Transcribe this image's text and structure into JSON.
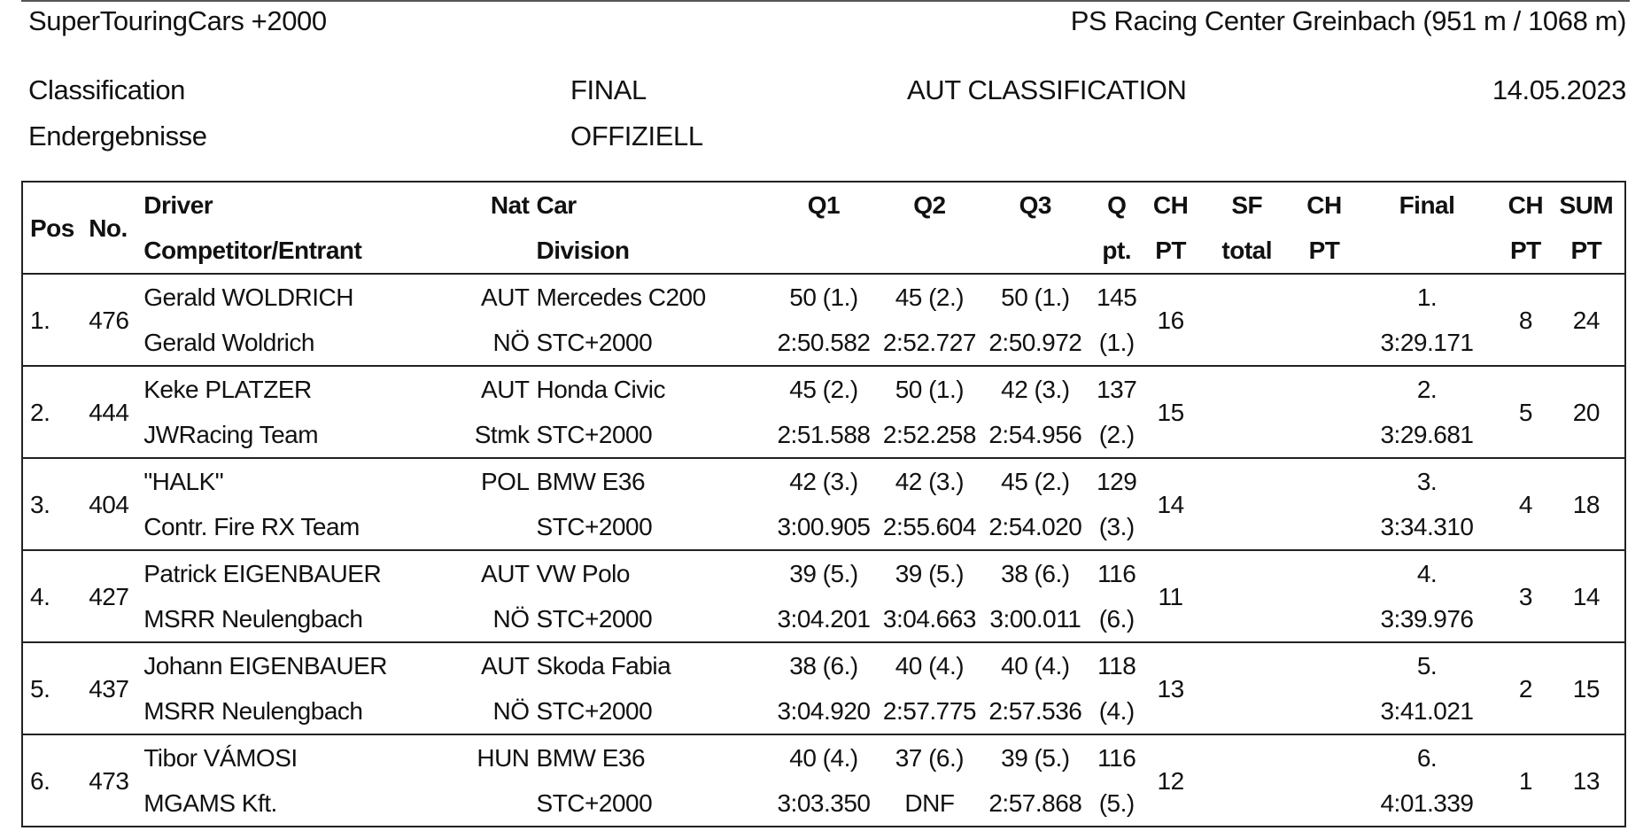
{
  "header": {
    "series": "SuperTouringCars +2000",
    "venue": "PS Racing Center Greinbach (951 m / 1068 m)",
    "classification_en": "Classification",
    "classification_de": "Endergebnisse",
    "stage": "FINAL",
    "status": "OFFIZIELL",
    "classification_type": "AUT CLASSIFICATION",
    "date": "14.05.2023"
  },
  "columns": {
    "pos": "Pos",
    "no": "No.",
    "driver": "Driver",
    "competitor": "Competitor/Entrant",
    "nat": "Nat",
    "car": "Car",
    "division": "Division",
    "q1": "Q1",
    "q2": "Q2",
    "q3": "Q3",
    "q_top": "Q",
    "q_bottom": "pt.",
    "ch1_top": "CH",
    "ch1_bottom": "PT",
    "sf_top": "SF",
    "sf_bottom": "total",
    "ch2_top": "CH",
    "ch2_bottom": "PT",
    "final": "Final",
    "ch3_top": "CH",
    "ch3_bottom": "PT",
    "sum_top": "SUM",
    "sum_bottom": "PT"
  },
  "rows": [
    {
      "pos": "1.",
      "no": "476",
      "driver": "Gerald WOLDRICH",
      "competitor": "Gerald Woldrich",
      "nat": "AUT",
      "region": "NÖ",
      "car": "Mercedes C200",
      "division": "STC+2000",
      "q1_pts": "50 (1.)",
      "q1_time": "2:50.582",
      "q2_pts": "45 (2.)",
      "q2_time": "2:52.727",
      "q3_pts": "50 (1.)",
      "q3_time": "2:50.972",
      "q_pts": "145",
      "q_rank": "(1.)",
      "ch_q": "16",
      "sf_total": "",
      "ch_sf": "",
      "final_pos": "1.",
      "final_time": "3:29.171",
      "ch_final": "8",
      "sum": "24"
    },
    {
      "pos": "2.",
      "no": "444",
      "driver": "Keke PLATZER",
      "competitor": "JWRacing Team",
      "nat": "AUT",
      "region": "Stmk",
      "car": "Honda Civic",
      "division": "STC+2000",
      "q1_pts": "45 (2.)",
      "q1_time": "2:51.588",
      "q2_pts": "50 (1.)",
      "q2_time": "2:52.258",
      "q3_pts": "42 (3.)",
      "q3_time": "2:54.956",
      "q_pts": "137",
      "q_rank": "(2.)",
      "ch_q": "15",
      "sf_total": "",
      "ch_sf": "",
      "final_pos": "2.",
      "final_time": "3:29.681",
      "ch_final": "5",
      "sum": "20"
    },
    {
      "pos": "3.",
      "no": "404",
      "driver": "\"HALK\"",
      "competitor": "Contr. Fire RX Team",
      "nat": "POL",
      "region": "",
      "car": "BMW E36",
      "division": "STC+2000",
      "q1_pts": "42 (3.)",
      "q1_time": "3:00.905",
      "q2_pts": "42 (3.)",
      "q2_time": "2:55.604",
      "q3_pts": "45 (2.)",
      "q3_time": "2:54.020",
      "q_pts": "129",
      "q_rank": "(3.)",
      "ch_q": "14",
      "sf_total": "",
      "ch_sf": "",
      "final_pos": "3.",
      "final_time": "3:34.310",
      "ch_final": "4",
      "sum": "18"
    },
    {
      "pos": "4.",
      "no": "427",
      "driver": "Patrick EIGENBAUER",
      "competitor": "MSRR Neulengbach",
      "nat": "AUT",
      "region": "NÖ",
      "car": "VW Polo",
      "division": "STC+2000",
      "q1_pts": "39 (5.)",
      "q1_time": "3:04.201",
      "q2_pts": "39 (5.)",
      "q2_time": "3:04.663",
      "q3_pts": "38 (6.)",
      "q3_time": "3:00.011",
      "q_pts": "116",
      "q_rank": "(6.)",
      "ch_q": "11",
      "sf_total": "",
      "ch_sf": "",
      "final_pos": "4.",
      "final_time": "3:39.976",
      "ch_final": "3",
      "sum": "14"
    },
    {
      "pos": "5.",
      "no": "437",
      "driver": "Johann EIGENBAUER",
      "competitor": "MSRR Neulengbach",
      "nat": "AUT",
      "region": "NÖ",
      "car": "Skoda Fabia",
      "division": "STC+2000",
      "q1_pts": "38 (6.)",
      "q1_time": "3:04.920",
      "q2_pts": "40 (4.)",
      "q2_time": "2:57.775",
      "q3_pts": "40 (4.)",
      "q3_time": "2:57.536",
      "q_pts": "118",
      "q_rank": "(4.)",
      "ch_q": "13",
      "sf_total": "",
      "ch_sf": "",
      "final_pos": "5.",
      "final_time": "3:41.021",
      "ch_final": "2",
      "sum": "15"
    },
    {
      "pos": "6.",
      "no": "473",
      "driver": "Tibor VÁMOSI",
      "competitor": "MGAMS Kft.",
      "nat": "HUN",
      "region": "",
      "car": "BMW E36",
      "division": "STC+2000",
      "q1_pts": "40 (4.)",
      "q1_time": "3:03.350",
      "q2_pts": "37 (6.)",
      "q2_time": "DNF",
      "q3_pts": "39 (5.)",
      "q3_time": "2:57.868",
      "q_pts": "116",
      "q_rank": "(5.)",
      "ch_q": "12",
      "sf_total": "",
      "ch_sf": "",
      "final_pos": "6.",
      "final_time": "4:01.339",
      "ch_final": "1",
      "sum": "13"
    }
  ]
}
